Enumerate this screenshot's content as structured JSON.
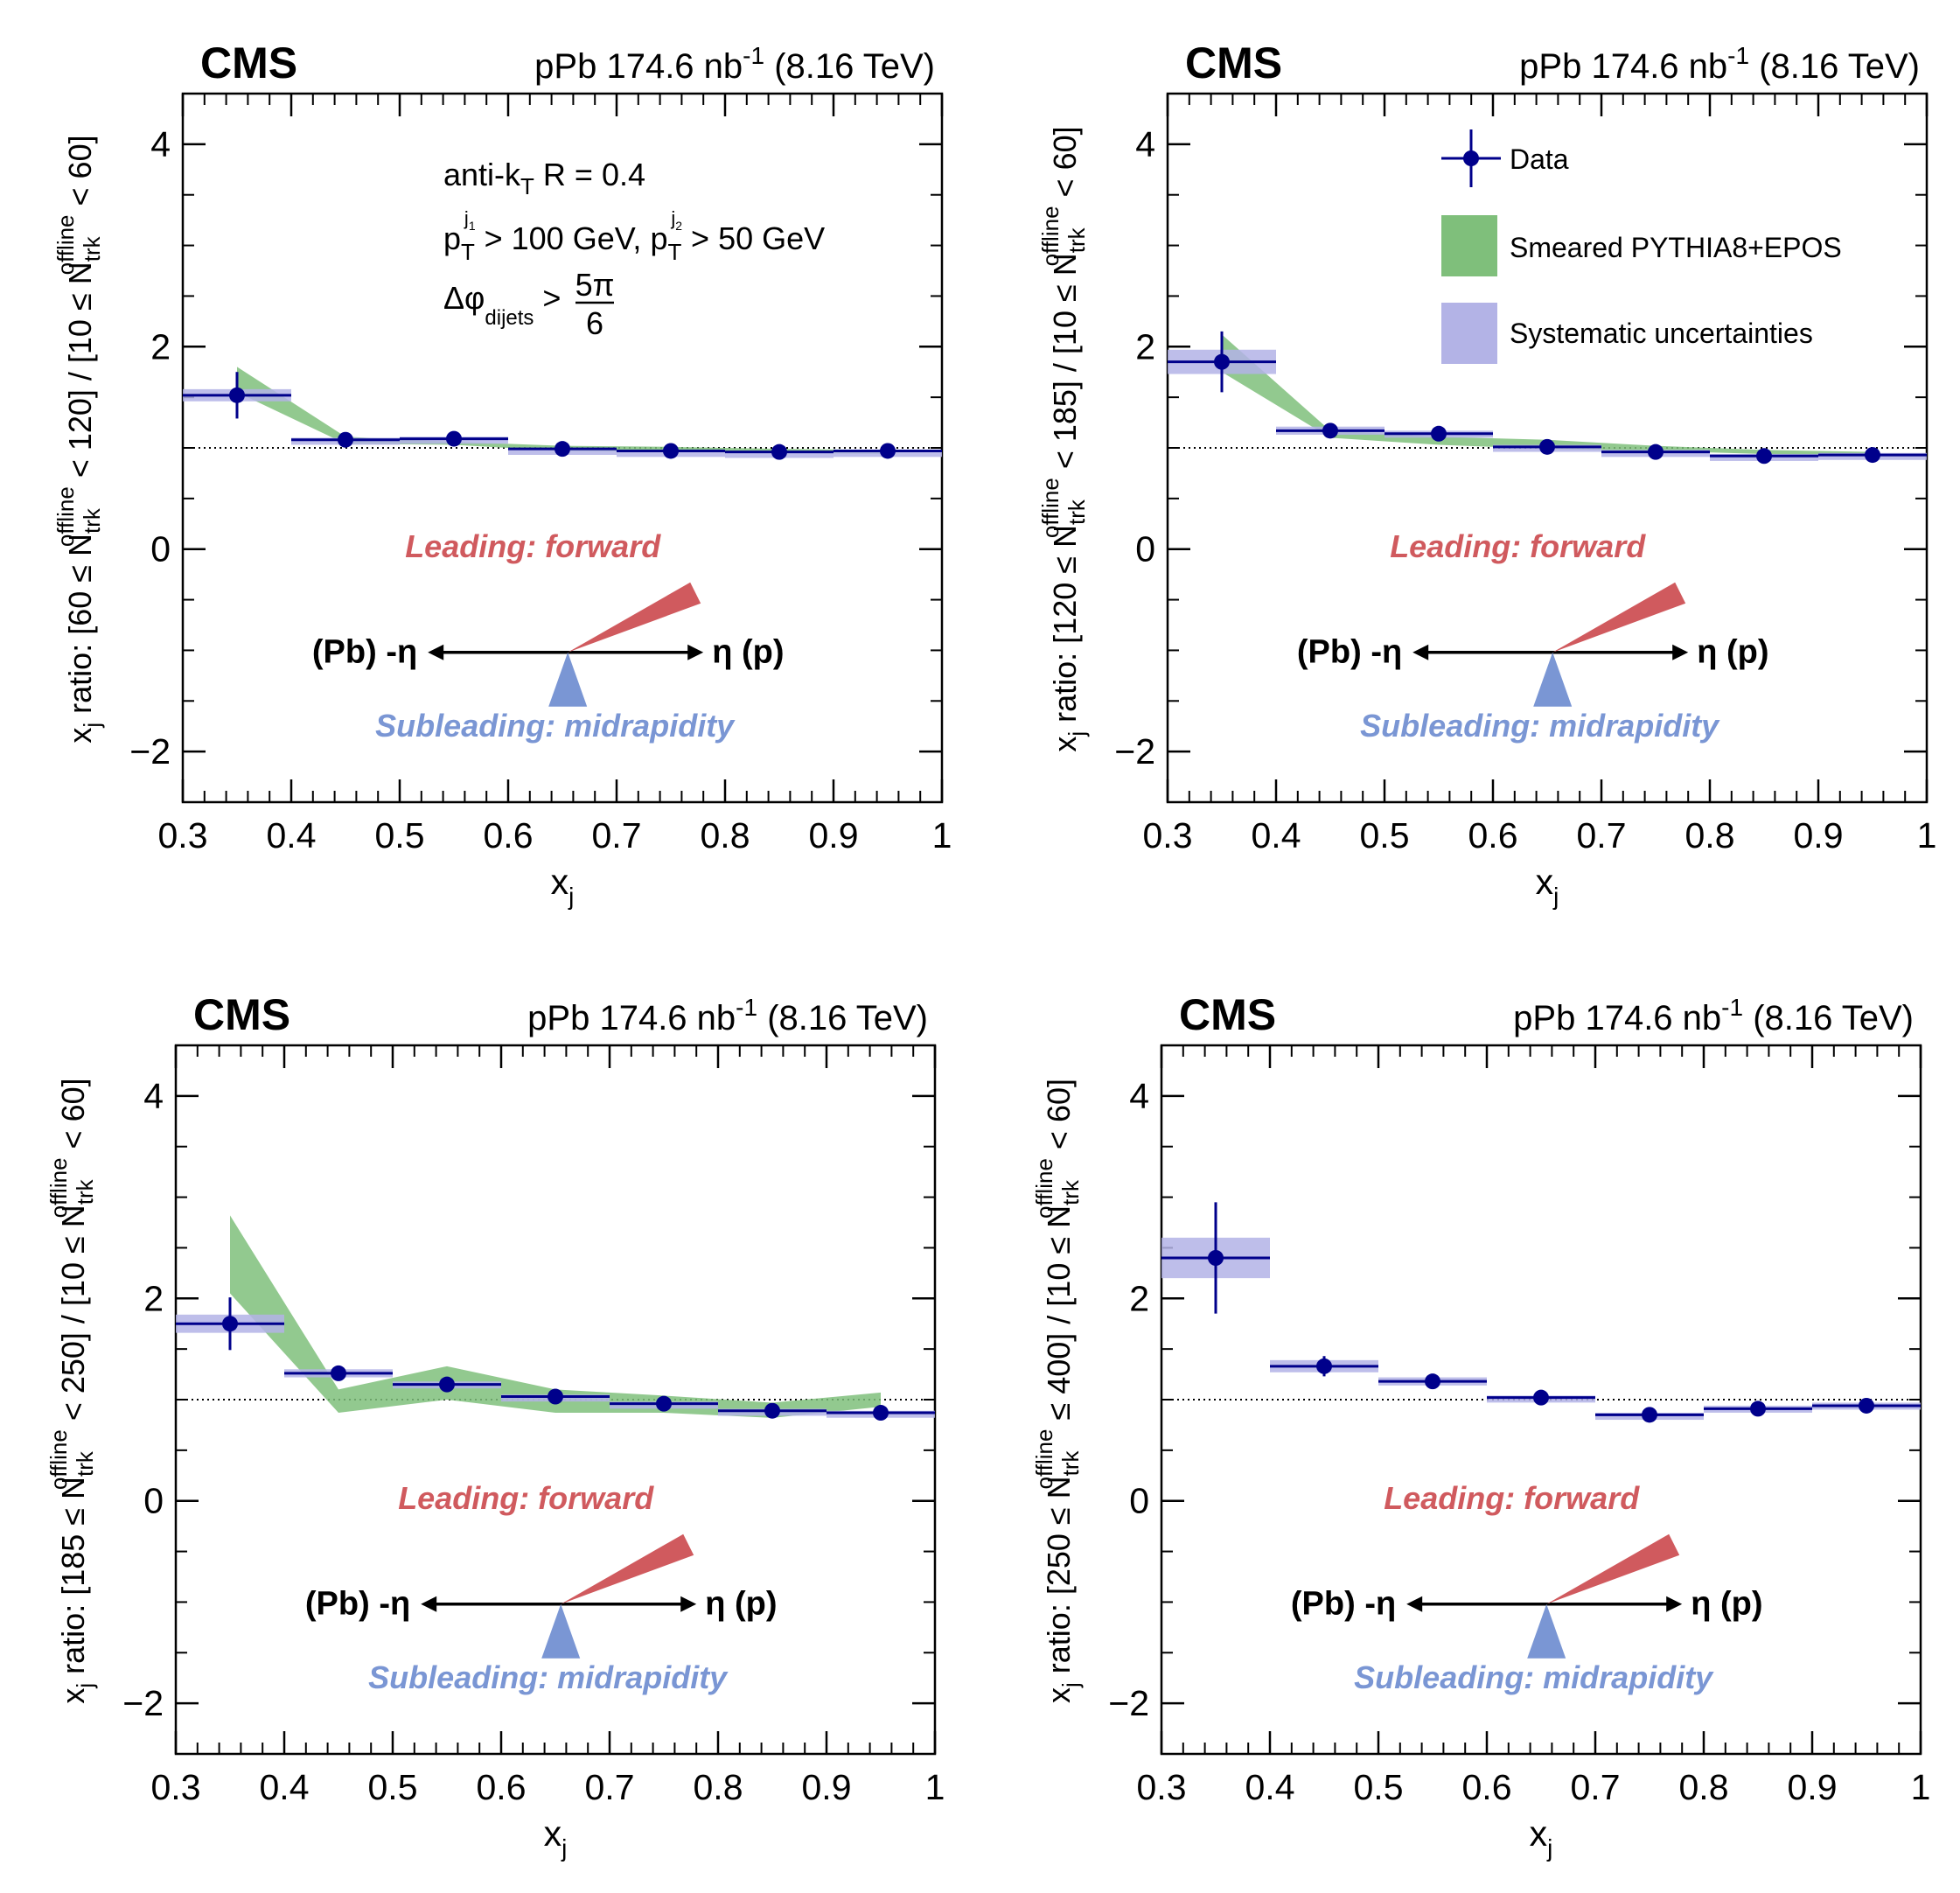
{
  "common": {
    "experiment": "CMS",
    "lumi_label": "pPb 174.6 nb",
    "lumi_sup": "-1",
    "energy": "(8.16 TeV)",
    "xlabel_main": "x",
    "xlabel_sub": "j",
    "leading_label": "Leading: forward",
    "subleading_label": "Subleading: midrapidity",
    "pb_label": "(Pb) -η",
    "p_label": "η (p)",
    "x_ticks": [
      "0.3",
      "0.4",
      "0.5",
      "0.6",
      "0.7",
      "0.8",
      "0.9",
      "1"
    ],
    "y_ticks": [
      "−2",
      "0",
      "2",
      "4"
    ],
    "colors": {
      "data": "#00008b",
      "model": "#7fbf7b",
      "syst": "#b3b3e6",
      "leading": "#d05a5e",
      "subleading": "#7a96d4"
    }
  },
  "annotations": {
    "algo": "anti-k",
    "algo_sub": "T",
    "algo_rest": " R = 0.4",
    "pt_cut": "p",
    "pt_cut_rest1": " > 100 GeV, p",
    "pt_cut_rest2": " > 50 GeV",
    "dphi": "Δφ",
    "dphi_sub": "dijets",
    "dphi_gt": " >",
    "dphi_num": "5π",
    "dphi_den": "6"
  },
  "legend": {
    "data": "Data",
    "model": "Smeared PYTHIA8+EPOS",
    "syst": "Systematic uncertainties"
  },
  "chart_data": [
    {
      "type": "scatter",
      "ylabel": "x_j ratio: [60 ≤ N_trk^offline < 120] / [10 ≤ N_trk^offline < 60]",
      "ylabel_main": "x",
      "ylabel_j": "j",
      "ylabel_a": " ratio: [60 ≤ N",
      "ylabel_b": " < 120] / [10 ≤ N",
      "ylabel_c": " < 60]",
      "xlim": [
        0.3,
        1.0
      ],
      "ylim": [
        -2.5,
        4.5
      ],
      "reference_line": 1,
      "x": [
        0.35,
        0.45,
        0.55,
        0.65,
        0.75,
        0.85,
        0.95
      ],
      "series": [
        {
          "name": "Data",
          "values": [
            1.52,
            1.08,
            1.09,
            0.99,
            0.97,
            0.96,
            0.97
          ],
          "stat_err": [
            0.23,
            0.04,
            0.03,
            0.02,
            0.02,
            0.02,
            0.02
          ],
          "syst_err": [
            0.06,
            0.02,
            0.02,
            0.01,
            0.01,
            0.01,
            0.01
          ]
        },
        {
          "name": "Smeared PYTHIA8+EPOS",
          "x": [
            0.35,
            0.45,
            0.55,
            0.65,
            0.75,
            0.85,
            0.95
          ],
          "low": [
            1.55,
            1.04,
            1.03,
            0.97,
            0.96,
            0.95,
            0.94
          ],
          "high": [
            1.8,
            1.11,
            1.06,
            1.02,
            1.01,
            0.99,
            0.98
          ]
        }
      ]
    },
    {
      "type": "scatter",
      "ylabel": "x_j ratio: [120 ≤ N_trk^offline < 185] / [10 ≤ N_trk^offline < 60]",
      "ylabel_main": "x",
      "ylabel_j": "j",
      "ylabel_a": " ratio: [120 ≤ N",
      "ylabel_b": " < 185] / [10 ≤ N",
      "ylabel_c": " < 60]",
      "xlim": [
        0.3,
        1.0
      ],
      "ylim": [
        -2.5,
        4.5
      ],
      "reference_line": 1,
      "x": [
        0.35,
        0.45,
        0.55,
        0.65,
        0.75,
        0.85,
        0.95
      ],
      "series": [
        {
          "name": "Data",
          "values": [
            1.85,
            1.17,
            1.14,
            1.01,
            0.96,
            0.92,
            0.93
          ],
          "stat_err": [
            0.3,
            0.05,
            0.04,
            0.03,
            0.02,
            0.02,
            0.02
          ],
          "syst_err": [
            0.12,
            0.04,
            0.03,
            0.02,
            0.02,
            0.02,
            0.02
          ]
        },
        {
          "name": "Smeared PYTHIA8+EPOS",
          "x": [
            0.35,
            0.45,
            0.55,
            0.65,
            0.75,
            0.85,
            0.95
          ],
          "low": [
            1.75,
            1.1,
            1.03,
            0.99,
            0.97,
            0.94,
            0.92
          ],
          "high": [
            2.12,
            1.17,
            1.11,
            1.08,
            1.02,
            0.98,
            0.96
          ]
        }
      ]
    },
    {
      "type": "scatter",
      "ylabel": "x_j ratio: [185 ≤ N_trk^offline < 250] / [10 ≤ N_trk^offline < 60]",
      "ylabel_main": "x",
      "ylabel_j": "j",
      "ylabel_a": " ratio: [185 ≤ N",
      "ylabel_b": " < 250] / [10 ≤ N",
      "ylabel_c": " < 60]",
      "xlim": [
        0.3,
        1.0
      ],
      "ylim": [
        -2.5,
        4.5
      ],
      "reference_line": 1,
      "x": [
        0.35,
        0.45,
        0.55,
        0.65,
        0.75,
        0.85,
        0.95
      ],
      "series": [
        {
          "name": "Data",
          "values": [
            1.75,
            1.26,
            1.15,
            1.03,
            0.96,
            0.89,
            0.87
          ],
          "stat_err": [
            0.26,
            0.05,
            0.04,
            0.03,
            0.03,
            0.03,
            0.02
          ],
          "syst_err": [
            0.09,
            0.04,
            0.03,
            0.02,
            0.02,
            0.02,
            0.02
          ]
        },
        {
          "name": "Smeared PYTHIA8+EPOS",
          "x": [
            0.35,
            0.45,
            0.55,
            0.65,
            0.75,
            0.85,
            0.95
          ],
          "low": [
            2.05,
            0.87,
            1.0,
            0.87,
            0.87,
            0.82,
            0.93
          ],
          "high": [
            2.82,
            1.1,
            1.33,
            1.1,
            1.04,
            0.97,
            1.07
          ]
        }
      ]
    },
    {
      "type": "scatter",
      "ylabel": "x_j ratio: [250 ≤ N_trk^offline ≤ 400] / [10 ≤ N_trk^offline < 60]",
      "ylabel_main": "x",
      "ylabel_j": "j",
      "ylabel_a": " ratio: [250 ≤ N",
      "ylabel_b": " ≤ 400] / [10 ≤ N",
      "ylabel_c": " < 60]",
      "xlim": [
        0.3,
        1.0
      ],
      "ylim": [
        -2.5,
        4.5
      ],
      "reference_line": 1,
      "x": [
        0.35,
        0.45,
        0.55,
        0.65,
        0.75,
        0.85,
        0.95
      ],
      "series": [
        {
          "name": "Data",
          "values": [
            2.4,
            1.33,
            1.18,
            1.02,
            0.85,
            0.91,
            0.94
          ],
          "stat_err": [
            0.55,
            0.1,
            0.05,
            0.03,
            0.03,
            0.03,
            0.03
          ],
          "syst_err": [
            0.2,
            0.06,
            0.04,
            0.02,
            0.02,
            0.03,
            0.03
          ]
        }
      ]
    }
  ],
  "sup_labels": {
    "offline": "offline",
    "trk": "trk",
    "j1": "j",
    "j1_sub": "1",
    "j2": "j",
    "j2_sub": "2",
    "T": "T"
  }
}
